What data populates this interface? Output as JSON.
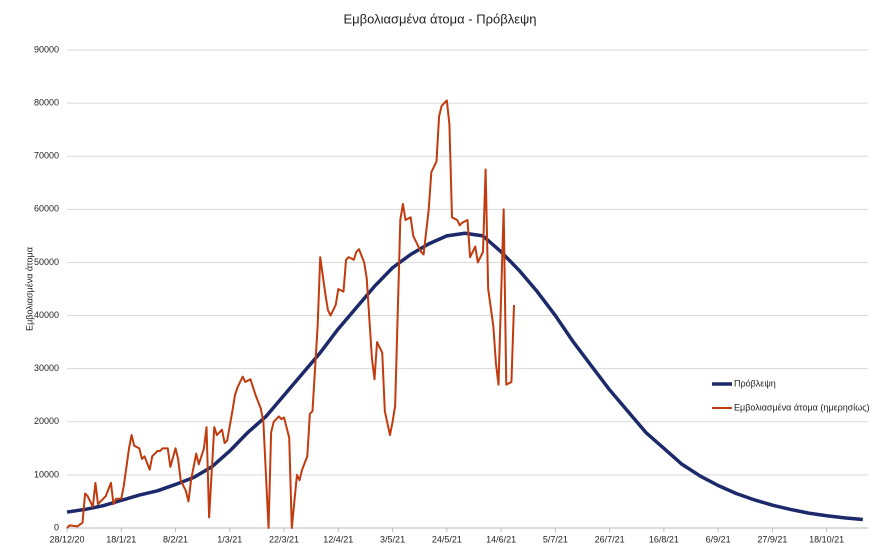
{
  "chart_data": {
    "type": "line",
    "title": "Εμβολιασμένα άτομα - Πρόβλεψη",
    "y_label": "Εμβολιασμένα άτομα",
    "xlim": [
      0,
      310
    ],
    "xticks": [
      {
        "value": 0,
        "label": "28/12/20"
      },
      {
        "value": 21,
        "label": "18/1/21"
      },
      {
        "value": 42,
        "label": "8/2/21"
      },
      {
        "value": 63,
        "label": "1/3/21"
      },
      {
        "value": 84,
        "label": "22/3/21"
      },
      {
        "value": 105,
        "label": "12/4/21"
      },
      {
        "value": 126,
        "label": "3/5/21"
      },
      {
        "value": 147,
        "label": "24/5/21"
      },
      {
        "value": 168,
        "label": "14/6/21"
      },
      {
        "value": 189,
        "label": "5/7/21"
      },
      {
        "value": 210,
        "label": "26/7/21"
      },
      {
        "value": 231,
        "label": "16/8/21"
      },
      {
        "value": 252,
        "label": "6/9/21"
      },
      {
        "value": 273,
        "label": "27/9/21"
      },
      {
        "value": 294,
        "label": "18/10/21"
      }
    ],
    "ylim": [
      0,
      90000
    ],
    "yticks": [
      0,
      10000,
      20000,
      30000,
      40000,
      50000,
      60000,
      70000,
      80000,
      90000
    ],
    "grid": true,
    "legend": "right",
    "series": [
      {
        "name": "Πρόβλεψη",
        "color": "#1c2a6b",
        "width": 3.5,
        "x": [
          0,
          7,
          14,
          21,
          28,
          35,
          42,
          49,
          56,
          63,
          70,
          77,
          84,
          91,
          98,
          105,
          112,
          119,
          126,
          133,
          140,
          147,
          154,
          161,
          168,
          175,
          182,
          189,
          196,
          203,
          210,
          217,
          224,
          231,
          238,
          245,
          252,
          259,
          266,
          273,
          280,
          287,
          294,
          301,
          308
        ],
        "values": [
          3000,
          3500,
          4200,
          5200,
          6200,
          7000,
          8200,
          9500,
          11500,
          14500,
          18000,
          21000,
          25000,
          29000,
          33000,
          37500,
          41500,
          45500,
          49000,
          51500,
          53500,
          55000,
          55500,
          55000,
          52000,
          48500,
          44500,
          40000,
          35000,
          30500,
          26000,
          22000,
          18000,
          15000,
          12000,
          9800,
          8000,
          6500,
          5300,
          4300,
          3500,
          2800,
          2300,
          1900,
          1600
        ]
      },
      {
        "name": "Εμβολιασμένα άτομα (ημερησίως)",
        "color": "#c23b0e",
        "width": 2,
        "x": [
          0,
          1,
          4,
          6,
          7,
          8,
          10,
          11,
          12,
          15,
          17,
          18,
          19,
          21,
          22,
          24,
          25,
          26,
          28,
          29,
          30,
          32,
          33,
          35,
          36,
          37,
          39,
          40,
          42,
          43,
          44,
          46,
          47,
          48,
          50,
          51,
          53,
          54,
          55,
          57,
          58,
          60,
          61,
          62,
          64,
          65,
          66,
          68,
          69,
          71,
          72,
          73,
          75,
          76,
          78,
          79,
          80,
          82,
          83,
          84,
          86,
          87,
          89,
          90,
          91,
          93,
          94,
          95,
          97,
          98,
          100,
          101,
          102,
          104,
          105,
          107,
          108,
          109,
          111,
          112,
          113,
          115,
          116,
          118,
          119,
          120,
          122,
          123,
          125,
          126,
          127,
          129,
          130,
          131,
          133,
          134,
          136,
          137,
          138,
          140,
          141,
          143,
          144,
          145,
          147,
          148,
          149,
          151,
          152,
          153,
          155,
          156,
          158,
          159,
          161,
          162,
          163,
          165,
          166,
          167,
          169,
          170,
          172,
          173
        ],
        "values": [
          0,
          500,
          300,
          1000,
          6500,
          6000,
          4000,
          8500,
          4500,
          6000,
          8500,
          4500,
          5500,
          5500,
          8000,
          15000,
          17500,
          15500,
          15000,
          13000,
          13500,
          11000,
          13500,
          14500,
          14500,
          15000,
          15000,
          11500,
          15000,
          13000,
          9000,
          7000,
          5000,
          9000,
          14000,
          12000,
          15000,
          19000,
          2000,
          19000,
          17500,
          18500,
          16000,
          16500,
          22000,
          25000,
          26500,
          28500,
          27500,
          28000,
          26500,
          25000,
          22500,
          20000,
          0,
          18000,
          20000,
          21000,
          20500,
          20800,
          17000,
          0,
          10000,
          9000,
          11000,
          13500,
          21500,
          22000,
          38000,
          51000,
          44000,
          41000,
          40000,
          42000,
          45000,
          44500,
          50500,
          51000,
          50500,
          52000,
          52500,
          50000,
          47000,
          32000,
          28000,
          35000,
          33000,
          22000,
          17500,
          20000,
          23000,
          58000,
          61000,
          58000,
          58500,
          55000,
          53000,
          52000,
          51500,
          60000,
          67000,
          69000,
          77500,
          79500,
          80500,
          76000,
          58500,
          58000,
          57000,
          57500,
          58000,
          51000,
          53000,
          50000,
          52000,
          67500,
          45000,
          38000,
          31000,
          27000,
          60000,
          27000,
          27500,
          42000
        ]
      }
    ]
  }
}
